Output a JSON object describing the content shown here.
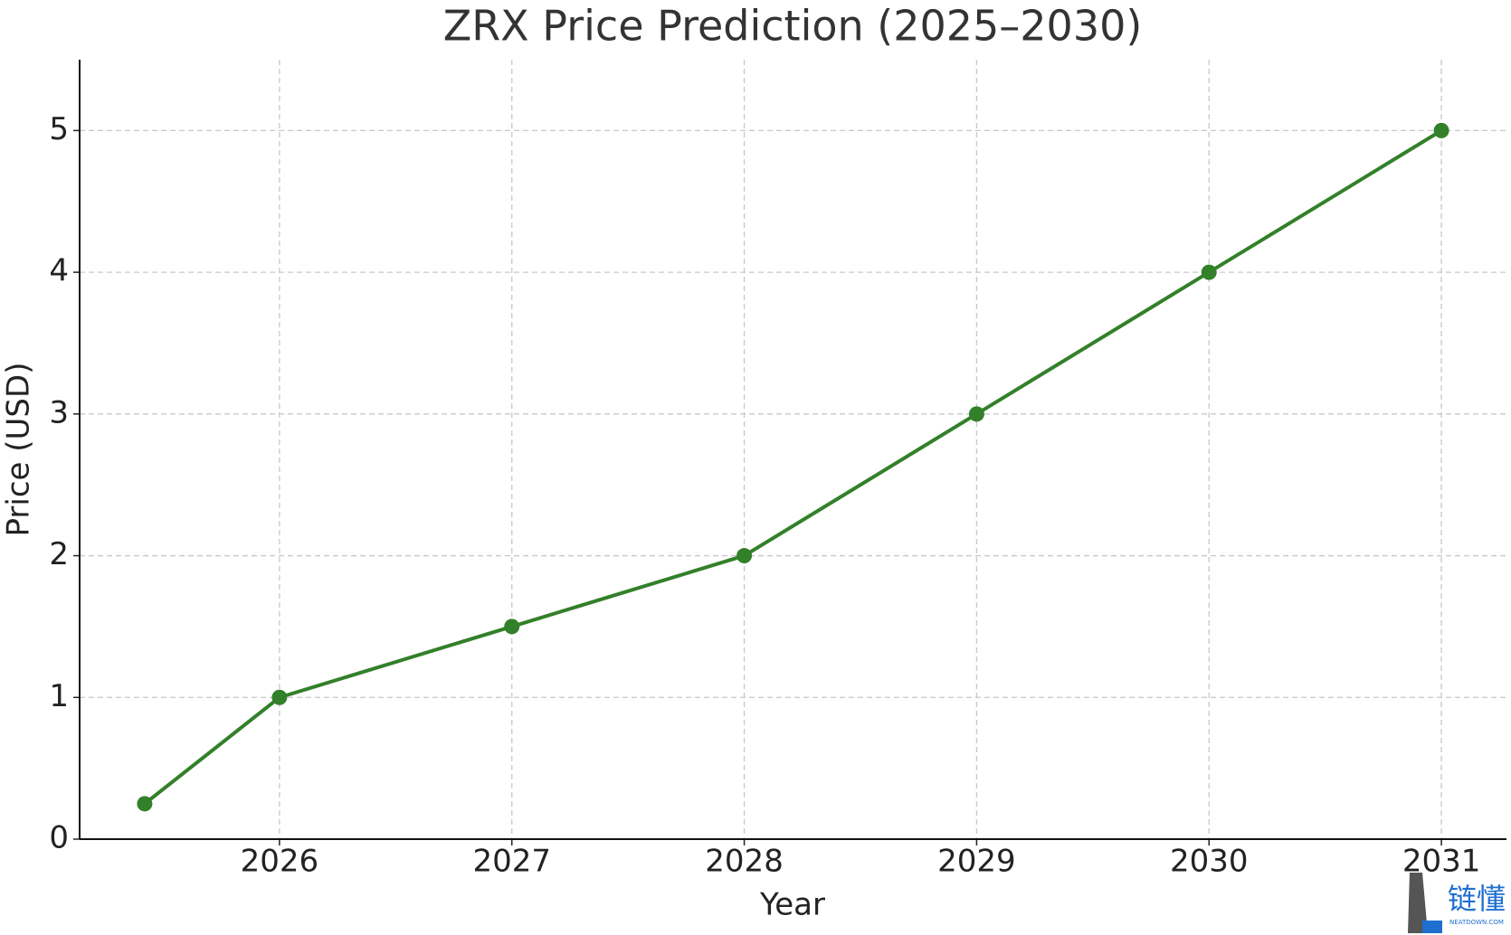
{
  "chart_data": {
    "type": "line",
    "title": "ZRX Price Prediction (2025–2030)",
    "x_label": "Year",
    "y_label": "Price (USD)",
    "x": [
      2025.42,
      2026,
      2027,
      2028,
      2029,
      2030,
      2031
    ],
    "values": [
      0.25,
      1,
      1.5,
      2,
      3,
      4,
      5
    ],
    "color": "#33802a",
    "xlim": [
      2025.14,
      2031.28
    ],
    "xticks": [
      2026,
      2027,
      2028,
      2029,
      2030,
      2031
    ],
    "ylim": [
      0,
      5.5
    ],
    "yticks": [
      0,
      1,
      2,
      3,
      4,
      5
    ],
    "grid": true
  },
  "watermark": {
    "text": "链懂",
    "sub": "NEATDOWN.COM"
  }
}
